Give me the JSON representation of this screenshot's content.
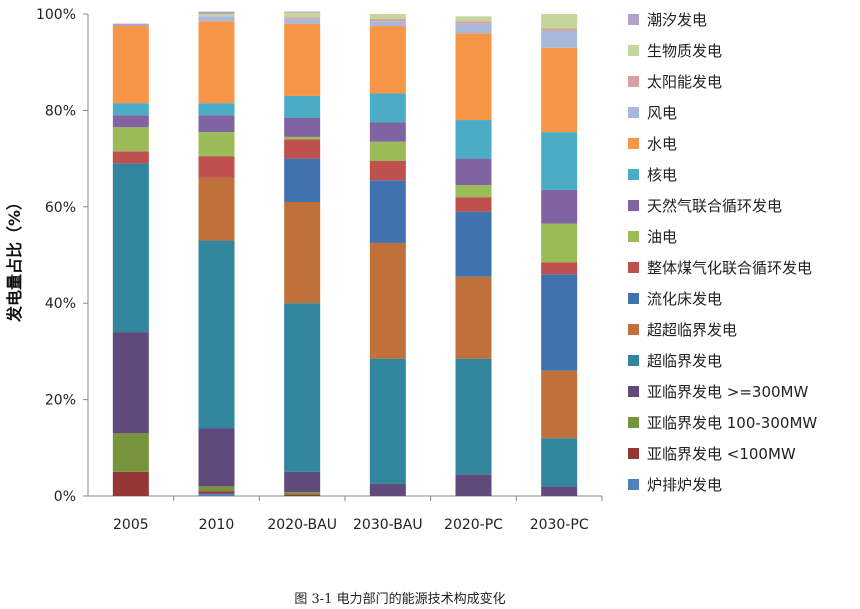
{
  "chart_data": {
    "type": "bar",
    "stacked": true,
    "percent": true,
    "title": "",
    "caption": "图 3-1 电力部门的能源技术构成变化",
    "xlabel": "",
    "ylabel": "发电量占比（%）",
    "ylim": [
      0,
      100
    ],
    "yticks": [
      "0%",
      "20%",
      "40%",
      "60%",
      "80%",
      "100%"
    ],
    "legend_position": "right",
    "categories": [
      "2005",
      "2010",
      "2020-BAU",
      "2030-BAU",
      "2020-PC",
      "2030-PC"
    ],
    "series": [
      {
        "name": "炉排炉发电",
        "color": "#4F81BD",
        "values": [
          0,
          0.5,
          0,
          0,
          0,
          0
        ]
      },
      {
        "name": "亚临界发电 <100MW",
        "color": "#953735",
        "values": [
          5,
          0.5,
          0.3,
          0,
          0,
          0
        ]
      },
      {
        "name": "亚临界发电 100-300MW",
        "color": "#77933C",
        "values": [
          8,
          1,
          0.5,
          0,
          0,
          0
        ]
      },
      {
        "name": "亚临界发电 >=300MW",
        "color": "#604A7B",
        "values": [
          21,
          12,
          4.2,
          2.5,
          4.5,
          2
        ]
      },
      {
        "name": "超临界发电",
        "color": "#31859C",
        "values": [
          35,
          39,
          35,
          26,
          24,
          10
        ]
      },
      {
        "name": "超超临界发电",
        "color": "#C0703A",
        "values": [
          0,
          13,
          21,
          24,
          17,
          14
        ]
      },
      {
        "name": "流化床发电",
        "color": "#3F72AF",
        "values": [
          0,
          0,
          9,
          13,
          13.5,
          20
        ]
      },
      {
        "name": "整体煤气化联合循环发电",
        "color": "#C0504D",
        "values": [
          2.5,
          4.5,
          4,
          4,
          3,
          2.5
        ]
      },
      {
        "name": "油电",
        "color": "#9BBB59",
        "values": [
          5,
          5,
          0.5,
          4,
          2.5,
          8
        ]
      },
      {
        "name": "天然气联合循环发电",
        "color": "#8064A2",
        "values": [
          2.5,
          3.5,
          4,
          4,
          5.5,
          7
        ]
      },
      {
        "name": "核电",
        "color": "#4BACC6",
        "values": [
          2.5,
          2.5,
          4.5,
          6,
          8,
          12
        ]
      },
      {
        "name": "水电",
        "color": "#F79646",
        "values": [
          16,
          17,
          15,
          14,
          18,
          17.5
        ]
      },
      {
        "name": "风电",
        "color": "#A7B9DB",
        "values": [
          0,
          1,
          1,
          1,
          2,
          3.5
        ]
      },
      {
        "name": "太阳能发电",
        "color": "#D9A0A0",
        "values": [
          0,
          0,
          0.3,
          0.5,
          0.5,
          0.5
        ]
      },
      {
        "name": "生物质发电",
        "color": "#C3D69B",
        "values": [
          0,
          0.5,
          1,
          1,
          1,
          3
        ]
      },
      {
        "name": "潮汐发电",
        "color": "#B2A2C7",
        "values": [
          0.5,
          0.5,
          0.2,
          0,
          0,
          0
        ]
      }
    ]
  }
}
